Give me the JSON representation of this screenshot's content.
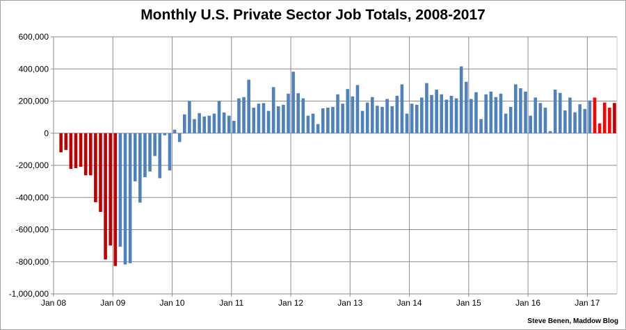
{
  "chart_data": {
    "type": "bar",
    "title": "Monthly U.S. Private Sector Job Totals, 2008-2017",
    "credit": "Steve Benen, Maddow Blog",
    "xlabel": "",
    "ylabel": "",
    "ylim": [
      -1000000,
      600000
    ],
    "yticks": [
      600000,
      400000,
      200000,
      0,
      -200000,
      -400000,
      -600000,
      -800000,
      -1000000
    ],
    "ytick_labels": [
      "600,000",
      "400,000",
      "200,000",
      "0",
      "-200,000",
      "-400,000",
      "-600,000",
      "-800,000",
      "-1,000,000"
    ],
    "xtick_labels": [
      "Jan 08",
      "Jan 09",
      "Jan 10",
      "Jan 11",
      "Jan 12",
      "Jan 13",
      "Jan 14",
      "Jan 15",
      "Jan 16",
      "Jan 17"
    ],
    "xlim": [
      "2008-01",
      "2017-07"
    ],
    "grid": true,
    "legend": "none",
    "start_month": "2008-02",
    "values": [
      -119000,
      -104000,
      -222000,
      -217000,
      -209000,
      -262000,
      -262000,
      -429000,
      -490000,
      -786000,
      -699000,
      -826000,
      -706000,
      -817000,
      -809000,
      -300000,
      -432000,
      -274000,
      -238000,
      -142000,
      -280000,
      -13000,
      -232000,
      22000,
      -55000,
      117000,
      199000,
      88000,
      125000,
      104000,
      109000,
      122000,
      199000,
      129000,
      109000,
      77000,
      217000,
      225000,
      333000,
      159000,
      184000,
      187000,
      139000,
      287000,
      168000,
      177000,
      246000,
      383000,
      249000,
      217000,
      109000,
      122000,
      57000,
      155000,
      159000,
      164000,
      242000,
      184000,
      275000,
      229000,
      300000,
      139000,
      191000,
      225000,
      171000,
      164000,
      213000,
      168000,
      233000,
      304000,
      122000,
      184000,
      177000,
      222000,
      312000,
      238000,
      271000,
      242000,
      209000,
      233000,
      217000,
      416000,
      320000,
      213000,
      255000,
      88000,
      242000,
      259000,
      225000,
      246000,
      122000,
      164000,
      304000,
      280000,
      259000,
      109000,
      222000,
      188000,
      159000,
      13000,
      271000,
      251000,
      142000,
      222000,
      130000,
      180000,
      151000,
      204000,
      222000,
      61000,
      191000,
      159000,
      188000
    ],
    "bar_colors": [
      {
        "from": "2008-02",
        "to": "2009-01",
        "color": "#c00000"
      },
      {
        "from": "2009-02",
        "to": "2017-01",
        "color": "#4f81bd"
      },
      {
        "from": "2017-02",
        "to": "2017-05",
        "color": "#ff0000"
      },
      {
        "from": "2017-06",
        "to": "2017-06",
        "color": "#c00000"
      }
    ],
    "grid_color": "#8c8c8c"
  }
}
